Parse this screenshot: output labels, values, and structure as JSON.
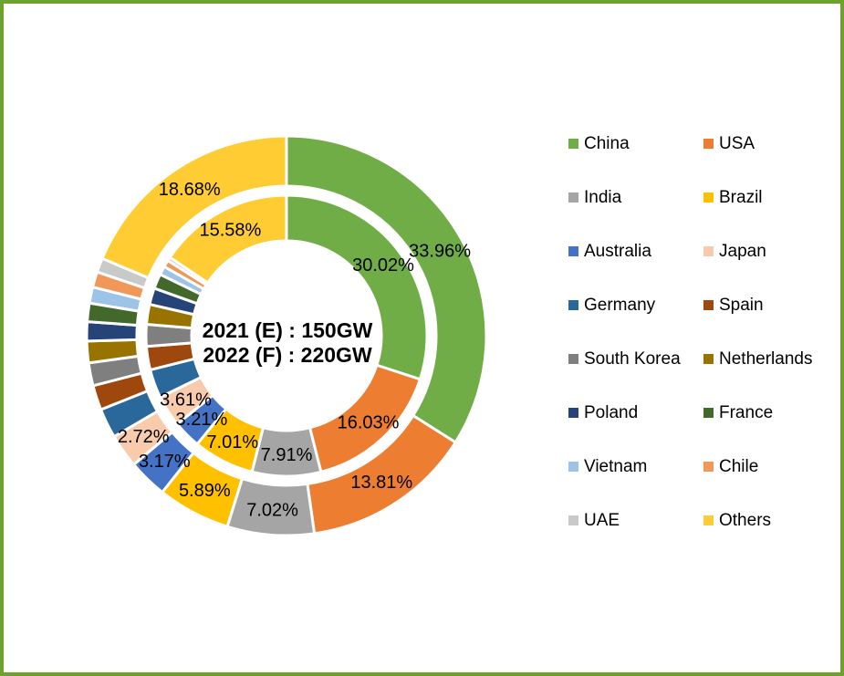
{
  "page": {
    "background": "#FFFFFF",
    "border_color": "#6FA12D"
  },
  "chart_data": {
    "type": "pie",
    "subtype": "double-ring-donut",
    "unit": "%",
    "legend_position": "right",
    "categories": [
      "China",
      "USA",
      "India",
      "Brazil",
      "Australia",
      "Japan",
      "Germany",
      "Spain",
      "South Korea",
      "Netherlands",
      "Poland",
      "France",
      "Vietnam",
      "Chile",
      "UAE",
      "Others"
    ],
    "colors": [
      "#70AD47",
      "#ED7D31",
      "#A5A5A5",
      "#FFC000",
      "#4472C4",
      "#F8CBAD",
      "#2A679A",
      "#9E480E",
      "#7F7F7F",
      "#997300",
      "#264478",
      "#43682B",
      "#9DC3E6",
      "#F1975A",
      "#C9C9C9",
      "#FFCD33"
    ],
    "series": [
      {
        "name": "2021 (E)",
        "ring": "inner",
        "total": "150GW",
        "values": [
          30.02,
          16.03,
          7.91,
          7.01,
          3.21,
          3.61,
          3.3,
          2.7,
          2.5,
          2.3,
          1.9,
          1.7,
          1.0,
          0.8,
          0.43,
          15.58
        ]
      },
      {
        "name": "2022 (F)",
        "ring": "outer",
        "total": "220GW",
        "values": [
          33.96,
          13.81,
          7.02,
          5.89,
          3.17,
          2.72,
          2.4,
          2.0,
          1.85,
          1.75,
          1.55,
          1.5,
          1.3,
          1.25,
          1.15,
          18.68
        ]
      }
    ],
    "labeled_indices": [
      0,
      1,
      2,
      3,
      4,
      5,
      15
    ],
    "center_text": [
      "2021 (E) : 150GW",
      "2022 (F) : 220GW"
    ]
  }
}
